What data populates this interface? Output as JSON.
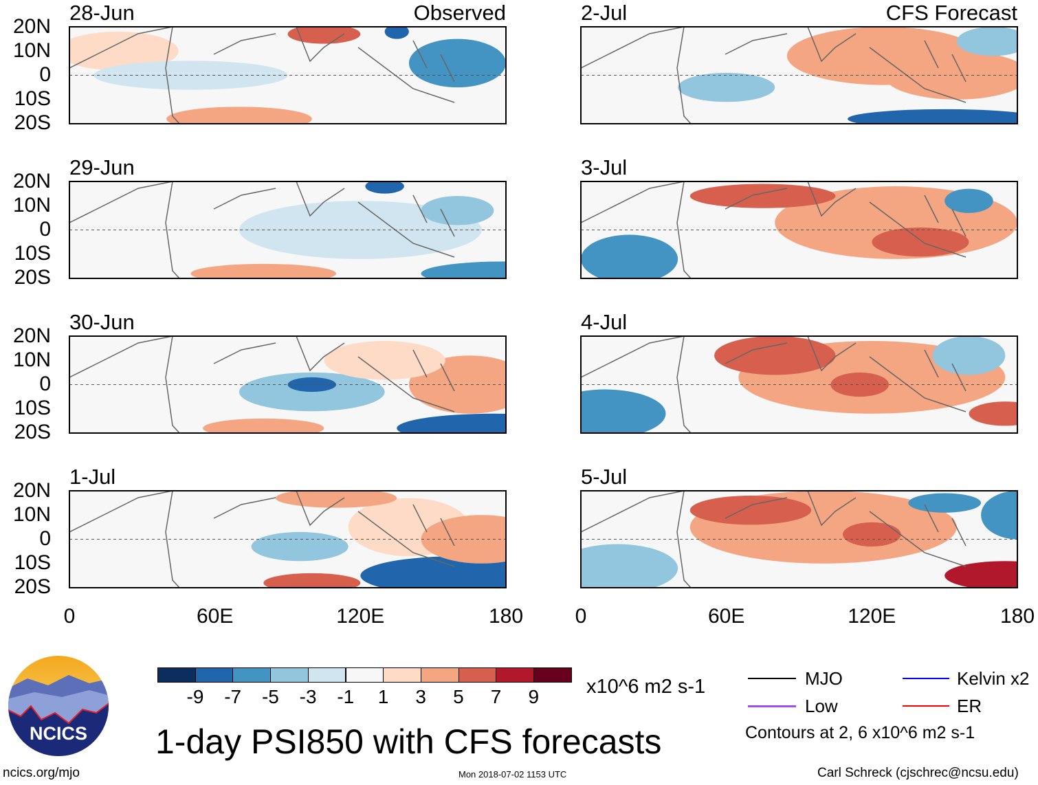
{
  "panels": [
    {
      "date": "28-Jun",
      "header": "Observed"
    },
    {
      "date": "29-Jun"
    },
    {
      "date": "30-Jun"
    },
    {
      "date": "1-Jul"
    },
    {
      "date": "2-Jul",
      "header": "CFS Forecast"
    },
    {
      "date": "3-Jul"
    },
    {
      "date": "4-Jul"
    },
    {
      "date": "5-Jul"
    }
  ],
  "lat_labels": [
    "20N",
    "10N",
    "0",
    "10S",
    "20S"
  ],
  "lon_labels": [
    "0",
    "60E",
    "120E",
    "180"
  ],
  "colorbar": {
    "colors": [
      "#0b2e5e",
      "#2166ac",
      "#4393c3",
      "#92c5de",
      "#d1e5f0",
      "#f7f7f7",
      "#fddbc7",
      "#f4a582",
      "#d6604d",
      "#b2182b",
      "#67001f"
    ],
    "ticks": [
      "-9",
      "-7",
      "-5",
      "-3",
      "-1",
      "1",
      "3",
      "5",
      "7",
      "9"
    ],
    "units": "x10^6 m2 s-1"
  },
  "title": "1-day PSI850 with CFS forecasts",
  "timestamp": "Mon 2018-07-02 1153 UTC",
  "legend": {
    "items": [
      {
        "label": "MJO",
        "color": "#000000"
      },
      {
        "label": "Kelvin x2",
        "color": "#0000ff"
      },
      {
        "label": "Low",
        "color": "#a050f0"
      },
      {
        "label": "ER",
        "color": "#ff0000"
      }
    ],
    "note": "Contours at 2, 6 x10^6 m2 s-1"
  },
  "logo_text": "NCICS",
  "url": "ncics.org/mjo",
  "credit": "Carl Schreck (cjschrec@ncsu.edu)"
}
